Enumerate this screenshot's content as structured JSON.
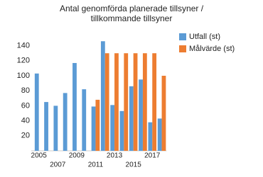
{
  "chart_data": {
    "type": "bar",
    "title": [
      "Antal genomförda planerade tillsyner /",
      "tillkommande tillsyner"
    ],
    "categories": [
      "2005",
      null,
      "2007",
      null,
      "2009",
      null,
      "2011",
      null,
      "2013",
      null,
      "2015",
      null,
      "2017",
      null
    ],
    "series": [
      {
        "name": "Utfall (st)",
        "color": "#5b9bd5",
        "values": [
          103,
          65,
          60,
          77,
          117,
          82,
          59,
          146,
          61,
          53,
          86,
          95,
          38,
          43
        ]
      },
      {
        "name": "Målvärde (st)",
        "color": "#ed7d31",
        "values": [
          null,
          null,
          null,
          null,
          null,
          null,
          68,
          130,
          130,
          130,
          130,
          130,
          130,
          100
        ]
      }
    ],
    "ylim": [
      0,
      150
    ],
    "yticks": [
      20,
      40,
      60,
      80,
      100,
      120,
      140
    ],
    "grid": false,
    "legend": "right"
  }
}
